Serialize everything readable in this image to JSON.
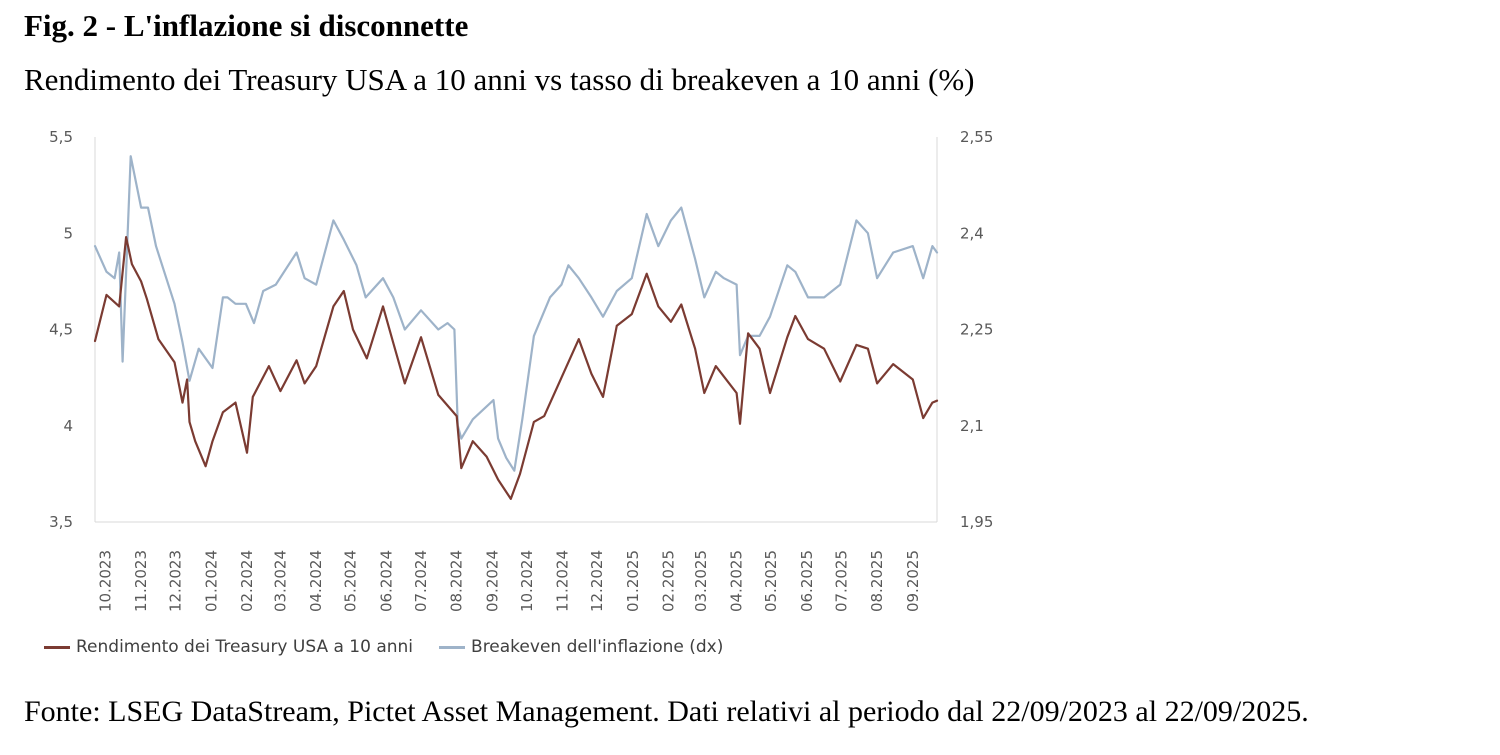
{
  "title": "Fig. 2 - L'inflazione si disconnette",
  "subtitle": "Rendimento dei Treasury USA a 10 anni vs tasso di breakeven a 10 anni (%)",
  "source": "Fonte: LSEG DataStream, Pictet Asset Management. Dati relativi al periodo dal 22/09/2023 al 22/09/2025.",
  "colors": {
    "treasury": "#7b3b32",
    "breakeven": "#9eb3c9",
    "axis": "#d9d9d9",
    "text": "#595959"
  },
  "chart_data": {
    "type": "line",
    "x_start": "22/09/2023",
    "x_end": "22/09/2025",
    "x_tick_labels": [
      "10.2023",
      "11.2023",
      "12.2023",
      "01.2024",
      "02.2024",
      "03.2024",
      "04.2024",
      "05.2024",
      "06.2024",
      "07.2024",
      "08.2024",
      "09.2024",
      "10.2024",
      "11.2024",
      "12.2024",
      "01.2025",
      "02.2025",
      "03.2025",
      "04.2025",
      "05.2025",
      "06.2025",
      "07.2025",
      "08.2025",
      "09.2025"
    ],
    "y_left": {
      "min": 3.5,
      "max": 5.5,
      "ticks": [
        "3,5",
        "4",
        "4,5",
        "5",
        "5,5"
      ]
    },
    "y_right": {
      "min": 1.95,
      "max": 2.55,
      "ticks": [
        "1,95",
        "2,1",
        "2,25",
        "2,4",
        "2,55"
      ]
    },
    "grid": false,
    "legend_position": "bottom-left",
    "series": [
      {
        "name": "Rendimento dei Treasury USA a 10 anni",
        "axis": "left",
        "values": [
          [
            "22/09/2023",
            4.44
          ],
          [
            "02/10/2023",
            4.68
          ],
          [
            "13/10/2023",
            4.62
          ],
          [
            "19/10/2023",
            4.98
          ],
          [
            "24/10/2023",
            4.84
          ],
          [
            "01/11/2023",
            4.75
          ],
          [
            "06/11/2023",
            4.66
          ],
          [
            "16/11/2023",
            4.45
          ],
          [
            "30/11/2023",
            4.33
          ],
          [
            "07/12/2023",
            4.12
          ],
          [
            "11/12/2023",
            4.24
          ],
          [
            "13/12/2023",
            4.02
          ],
          [
            "18/12/2023",
            3.92
          ],
          [
            "27/12/2023",
            3.79
          ],
          [
            "02/01/2024",
            3.92
          ],
          [
            "11/01/2024",
            4.07
          ],
          [
            "22/01/2024",
            4.12
          ],
          [
            "01/02/2024",
            3.86
          ],
          [
            "06/02/2024",
            4.15
          ],
          [
            "20/02/2024",
            4.31
          ],
          [
            "01/03/2024",
            4.18
          ],
          [
            "15/03/2024",
            4.34
          ],
          [
            "22/03/2024",
            4.22
          ],
          [
            "01/04/2024",
            4.31
          ],
          [
            "16/04/2024",
            4.62
          ],
          [
            "25/04/2024",
            4.7
          ],
          [
            "03/05/2024",
            4.5
          ],
          [
            "15/05/2024",
            4.35
          ],
          [
            "29/05/2024",
            4.62
          ],
          [
            "07/06/2024",
            4.43
          ],
          [
            "17/06/2024",
            4.22
          ],
          [
            "01/07/2024",
            4.46
          ],
          [
            "16/07/2024",
            4.16
          ],
          [
            "01/08/2024",
            4.05
          ],
          [
            "05/08/2024",
            3.78
          ],
          [
            "15/08/2024",
            3.92
          ],
          [
            "27/08/2024",
            3.84
          ],
          [
            "06/09/2024",
            3.72
          ],
          [
            "17/09/2024",
            3.62
          ],
          [
            "25/09/2024",
            3.75
          ],
          [
            "07/10/2024",
            4.02
          ],
          [
            "16/10/2024",
            4.05
          ],
          [
            "31/10/2024",
            4.25
          ],
          [
            "15/11/2024",
            4.45
          ],
          [
            "26/11/2024",
            4.27
          ],
          [
            "06/12/2024",
            4.15
          ],
          [
            "18/12/2024",
            4.52
          ],
          [
            "31/12/2024",
            4.58
          ],
          [
            "13/01/2025",
            4.79
          ],
          [
            "23/01/2025",
            4.62
          ],
          [
            "03/02/2025",
            4.54
          ],
          [
            "12/02/2025",
            4.63
          ],
          [
            "24/02/2025",
            4.4
          ],
          [
            "04/03/2025",
            4.17
          ],
          [
            "14/03/2025",
            4.31
          ],
          [
            "01/04/2025",
            4.17
          ],
          [
            "04/04/2025",
            4.01
          ],
          [
            "11/04/2025",
            4.48
          ],
          [
            "21/04/2025",
            4.4
          ],
          [
            "30/04/2025",
            4.17
          ],
          [
            "15/05/2025",
            4.46
          ],
          [
            "22/05/2025",
            4.57
          ],
          [
            "02/06/2025",
            4.45
          ],
          [
            "16/06/2025",
            4.4
          ],
          [
            "30/06/2025",
            4.23
          ],
          [
            "14/07/2025",
            4.42
          ],
          [
            "24/07/2025",
            4.4
          ],
          [
            "01/08/2025",
            4.22
          ],
          [
            "15/08/2025",
            4.32
          ],
          [
            "01/09/2025",
            4.24
          ],
          [
            "10/09/2025",
            4.04
          ],
          [
            "18/09/2025",
            4.12
          ],
          [
            "22/09/2025",
            4.13
          ]
        ]
      },
      {
        "name": "Breakeven dell'inflazione (dx)",
        "axis": "right",
        "values": [
          [
            "22/09/2023",
            2.38
          ],
          [
            "02/10/2023",
            2.34
          ],
          [
            "09/10/2023",
            2.33
          ],
          [
            "13/10/2023",
            2.37
          ],
          [
            "16/10/2023",
            2.2
          ],
          [
            "23/10/2023",
            2.52
          ],
          [
            "01/11/2023",
            2.44
          ],
          [
            "07/11/2023",
            2.44
          ],
          [
            "14/11/2023",
            2.38
          ],
          [
            "30/11/2023",
            2.29
          ],
          [
            "07/12/2023",
            2.23
          ],
          [
            "13/12/2023",
            2.17
          ],
          [
            "21/12/2023",
            2.22
          ],
          [
            "02/01/2024",
            2.19
          ],
          [
            "11/01/2024",
            2.3
          ],
          [
            "15/01/2024",
            2.3
          ],
          [
            "22/01/2024",
            2.29
          ],
          [
            "31/01/2024",
            2.29
          ],
          [
            "07/02/2024",
            2.26
          ],
          [
            "15/02/2024",
            2.31
          ],
          [
            "26/02/2024",
            2.32
          ],
          [
            "15/03/2024",
            2.37
          ],
          [
            "22/03/2024",
            2.33
          ],
          [
            "01/04/2024",
            2.32
          ],
          [
            "16/04/2024",
            2.42
          ],
          [
            "25/04/2024",
            2.39
          ],
          [
            "06/05/2024",
            2.35
          ],
          [
            "14/05/2024",
            2.3
          ],
          [
            "29/05/2024",
            2.33
          ],
          [
            "07/06/2024",
            2.3
          ],
          [
            "17/06/2024",
            2.25
          ],
          [
            "01/07/2024",
            2.28
          ],
          [
            "16/07/2024",
            2.25
          ],
          [
            "24/07/2024",
            2.26
          ],
          [
            "30/07/2024",
            2.25
          ],
          [
            "02/08/2024",
            2.1
          ],
          [
            "05/08/2024",
            2.08
          ],
          [
            "15/08/2024",
            2.11
          ],
          [
            "02/09/2024",
            2.14
          ],
          [
            "06/09/2024",
            2.08
          ],
          [
            "13/09/2024",
            2.05
          ],
          [
            "20/09/2024",
            2.03
          ],
          [
            "27/09/2024",
            2.11
          ],
          [
            "07/10/2024",
            2.24
          ],
          [
            "21/10/2024",
            2.3
          ],
          [
            "31/10/2024",
            2.32
          ],
          [
            "06/11/2024",
            2.35
          ],
          [
            "15/11/2024",
            2.33
          ],
          [
            "26/11/2024",
            2.3
          ],
          [
            "06/12/2024",
            2.27
          ],
          [
            "18/12/2024",
            2.31
          ],
          [
            "31/12/2024",
            2.33
          ],
          [
            "13/01/2025",
            2.43
          ],
          [
            "23/01/2025",
            2.38
          ],
          [
            "03/02/2025",
            2.42
          ],
          [
            "12/02/2025",
            2.44
          ],
          [
            "24/02/2025",
            2.36
          ],
          [
            "04/03/2025",
            2.3
          ],
          [
            "14/03/2025",
            2.34
          ],
          [
            "21/03/2025",
            2.33
          ],
          [
            "01/04/2025",
            2.32
          ],
          [
            "04/04/2025",
            2.21
          ],
          [
            "11/04/2025",
            2.24
          ],
          [
            "21/04/2025",
            2.24
          ],
          [
            "30/04/2025",
            2.27
          ],
          [
            "15/05/2025",
            2.35
          ],
          [
            "22/05/2025",
            2.34
          ],
          [
            "02/06/2025",
            2.3
          ],
          [
            "16/06/2025",
            2.3
          ],
          [
            "30/06/2025",
            2.32
          ],
          [
            "14/07/2025",
            2.42
          ],
          [
            "24/07/2025",
            2.4
          ],
          [
            "01/08/2025",
            2.33
          ],
          [
            "15/08/2025",
            2.37
          ],
          [
            "01/09/2025",
            2.38
          ],
          [
            "10/09/2025",
            2.33
          ],
          [
            "18/09/2025",
            2.38
          ],
          [
            "22/09/2025",
            2.37
          ]
        ]
      }
    ]
  }
}
